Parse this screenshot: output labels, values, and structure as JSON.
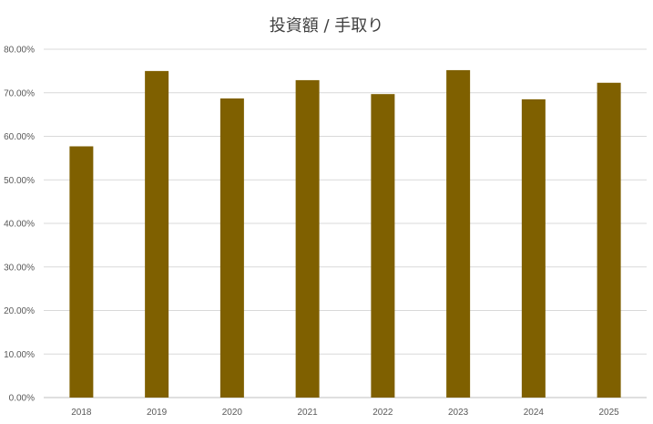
{
  "chart_data": {
    "type": "bar",
    "title": "投資額 / 手取り",
    "categories": [
      "2018",
      "2019",
      "2020",
      "2021",
      "2022",
      "2023",
      "2024",
      "2025"
    ],
    "values": [
      57.7,
      75.0,
      68.7,
      72.9,
      69.7,
      75.2,
      68.5,
      72.3
    ],
    "ylim": [
      0,
      80
    ],
    "yticks": [
      "0.00%",
      "10.00%",
      "20.00%",
      "30.00%",
      "40.00%",
      "50.00%",
      "60.00%",
      "70.00%",
      "80.00%"
    ],
    "xlabel": "",
    "ylabel": "",
    "grid": true,
    "legend": "none",
    "bar_color": "#7F6000"
  }
}
